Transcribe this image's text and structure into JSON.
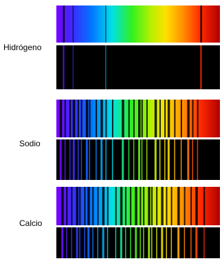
{
  "labels": [
    "Hidrógeno",
    "Sodio",
    "Calcio"
  ]
}
